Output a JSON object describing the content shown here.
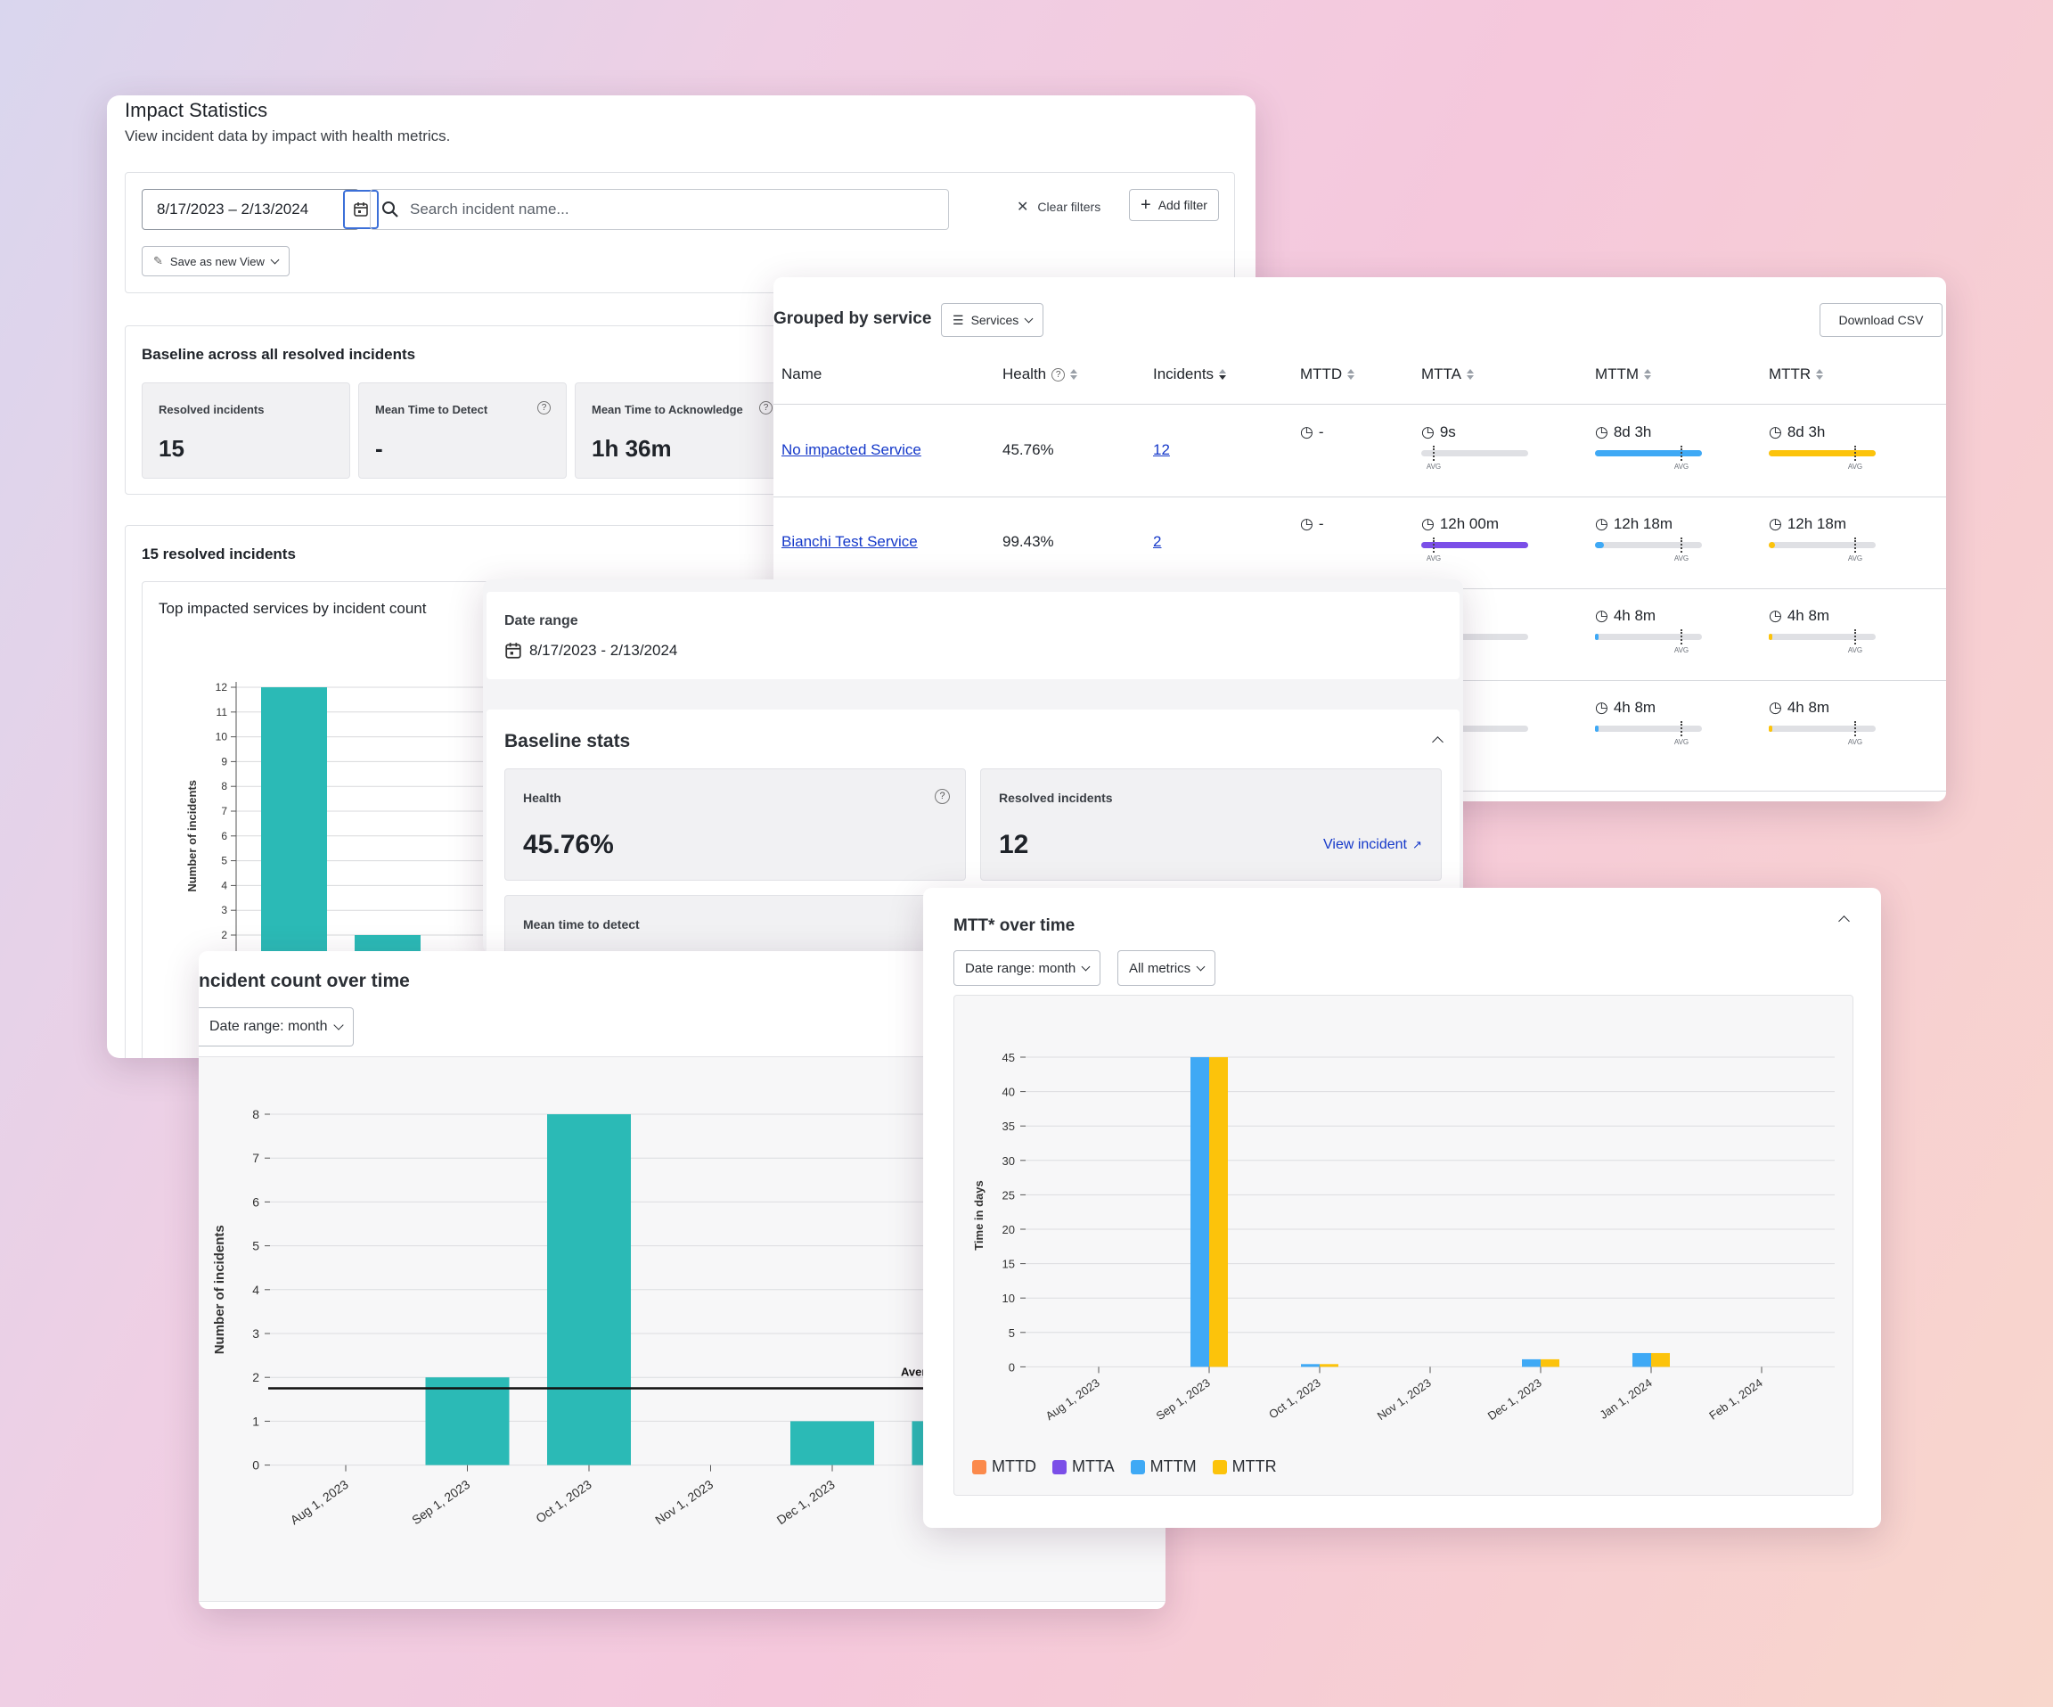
{
  "impact": {
    "title": "Impact Statistics",
    "subtitle": "View incident data by impact with health metrics.",
    "date_range": "8/17/2023  –  2/13/2024",
    "search_placeholder": "Search incident name...",
    "clear_filters": "Clear filters",
    "add_filter": "Add filter",
    "save_view": "Save as new View",
    "baseline_title": "Baseline across all resolved incidents",
    "stats": [
      {
        "label": "Resolved incidents",
        "value": "15"
      },
      {
        "label": "Mean Time to Detect",
        "value": "-"
      },
      {
        "label": "Mean Time to Acknowledge",
        "value": "1h 36m"
      }
    ],
    "resolved_title": "15 resolved incidents",
    "top_chart_title": "Top impacted services by incident count",
    "top_chart_ylabel": "Number of incidents"
  },
  "grouped": {
    "title": "Grouped by service",
    "services_button": "Services",
    "download_csv": "Download CSV",
    "columns": [
      "Name",
      "Health",
      "Incidents",
      "MTTD",
      "MTTA",
      "MTTM",
      "MTTR"
    ],
    "avg_label": "AVG",
    "rows": [
      {
        "name": "No impacted Service",
        "health": "45.76%",
        "incidents": "12",
        "mttd": "-",
        "mtta": "9s",
        "mttm": "8d 3h",
        "mttr": "8d 3h"
      },
      {
        "name": "Bianchi Test Service",
        "health": "99.43%",
        "incidents": "2",
        "mttd": "-",
        "mtta": "12h 00m",
        "mttm": "12h 18m",
        "mttr": "12h 18m"
      },
      {
        "mtta_partial": "h",
        "mttm": "4h 8m",
        "mttr": "4h 8m"
      },
      {
        "mtta_partial": "h",
        "mttm": "4h 8m",
        "mttr": "4h 8m"
      }
    ],
    "bars": [
      {
        "mtta": 0.0,
        "mttm": 1.0,
        "mttr": 1.0
      },
      {
        "mtta": 1.0,
        "mttm": 0.08,
        "mttr": 0.06
      },
      {
        "mtta": 0.0,
        "mttm": 0.02,
        "mttr": 0.03
      },
      {
        "mtta": 0.0,
        "mttm": 0.02,
        "mttr": 0.03
      }
    ],
    "colors": {
      "mtta": "#7b4fe8",
      "mttm": "#3fa9f5",
      "mttr": "#fcc30b"
    }
  },
  "detail": {
    "date_range_label": "Date range",
    "date_range_value": "8/17/2023 - 2/13/2024",
    "baseline_title": "Baseline stats",
    "health_label": "Health",
    "health_value": "45.76%",
    "resolved_label": "Resolved incidents",
    "resolved_value": "12",
    "view_incident": "View incident",
    "mttd_label": "Mean time to detect"
  },
  "incident_chart": {
    "title": "ncident count over time",
    "date_button": "Date range: month",
    "partial_label": "Aver"
  },
  "mtt_chart": {
    "title": "MTT* over time",
    "date_button": "Date range: month",
    "metrics_button": "All metrics"
  },
  "chart_data": [
    {
      "type": "bar",
      "title": "Top impacted services by incident count",
      "xlabel": "",
      "ylabel": "Number of incidents",
      "categories": [
        "No impacted Service",
        "Bianchi Test Service"
      ],
      "values": [
        12,
        2
      ],
      "ylim": [
        0,
        12
      ],
      "yticks": [
        2,
        3,
        4,
        5,
        6,
        7,
        8,
        9,
        10,
        11,
        12
      ],
      "color": "#2bbab6"
    },
    {
      "type": "bar",
      "title": "ncident count over time",
      "xlabel": "",
      "ylabel": "Number of incidents",
      "categories": [
        "Aug 1, 2023",
        "Sep 1, 2023",
        "Oct 1, 2023",
        "Nov 1, 2023",
        "Dec 1, 2023",
        "Jan"
      ],
      "values": [
        0,
        2,
        8,
        0,
        1,
        1
      ],
      "average": 1.75,
      "ylim": [
        0,
        8
      ],
      "yticks": [
        0,
        1,
        2,
        3,
        4,
        5,
        6,
        7,
        8
      ],
      "color": "#2bbab6"
    },
    {
      "type": "bar",
      "title": "MTT* over time",
      "xlabel": "",
      "ylabel": "Time in days",
      "categories": [
        "Aug 1, 2023",
        "Sep 1, 2023",
        "Oct 1, 2023",
        "Nov 1, 2023",
        "Dec 1, 2023",
        "Jan 1, 2024",
        "Feb 1, 2024"
      ],
      "series": [
        {
          "name": "MTTD",
          "color": "#fb8a4c",
          "values": [
            0,
            0,
            0,
            0,
            0,
            0,
            0
          ]
        },
        {
          "name": "MTTA",
          "color": "#7b4fe8",
          "values": [
            0,
            0,
            0,
            0,
            0,
            0,
            0
          ]
        },
        {
          "name": "MTTM",
          "color": "#3fa9f5",
          "values": [
            0,
            45,
            0.4,
            0,
            1.1,
            2,
            0
          ]
        },
        {
          "name": "MTTR",
          "color": "#fcc30b",
          "values": [
            0,
            45,
            0.4,
            0,
            1.1,
            2,
            0
          ]
        }
      ],
      "ylim": [
        0,
        45
      ],
      "yticks": [
        0,
        5,
        10,
        15,
        20,
        25,
        30,
        35,
        40,
        45
      ]
    }
  ]
}
